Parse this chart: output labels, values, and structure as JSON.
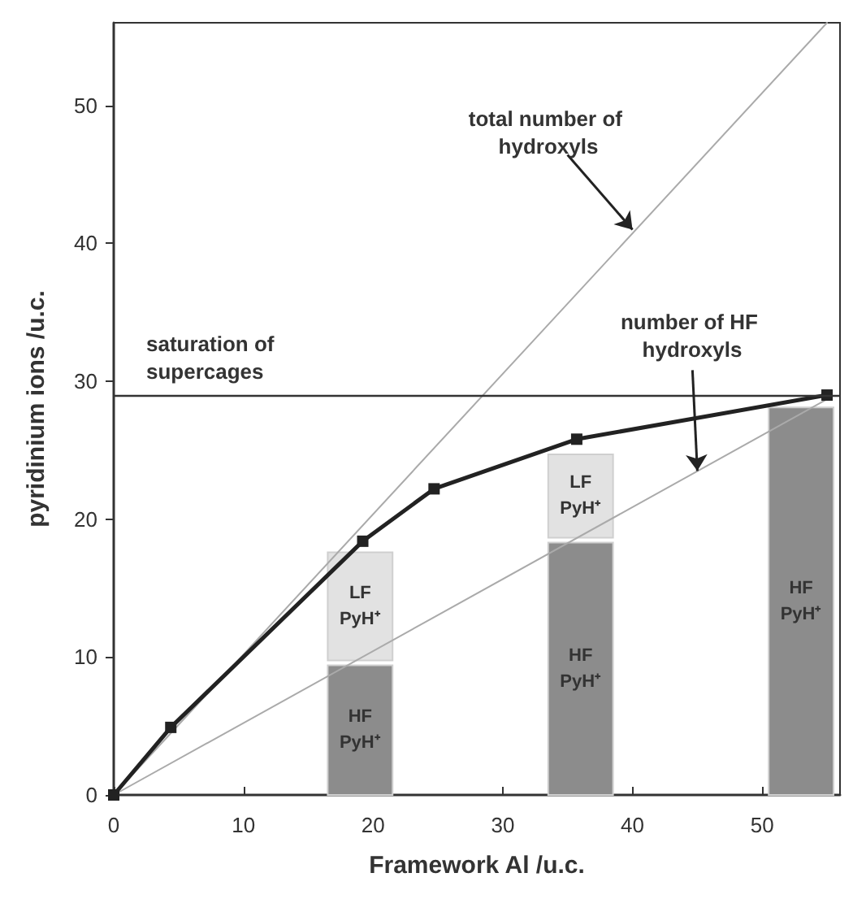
{
  "chart_data": {
    "type": "line",
    "xlabel": "Framework Al /u.c.",
    "ylabel": "pyridinium ions /u.c.",
    "xlim": [
      0,
      56
    ],
    "xticks": [
      0,
      10,
      20,
      30,
      40,
      50
    ],
    "ylim": [
      0,
      56
    ],
    "yticks": [
      0,
      10,
      20,
      30,
      40,
      50
    ],
    "grid": false,
    "stacked": true,
    "series": [
      {
        "type": "bar",
        "color": "#8c8c8c",
        "x": [
          19,
          36,
          53
        ],
        "values": [
          9.4,
          18.3,
          28.1
        ],
        "value_labels": [
          "HF PyH⁺",
          "HF PyH⁺",
          "HF PyH⁺"
        ]
      },
      {
        "type": "bar",
        "color": "#e2e2e2",
        "x": [
          19,
          36
        ],
        "values": [
          8.2,
          6.4
        ],
        "value_labels": [
          "LF PyH⁺",
          "LF PyH⁺"
        ]
      },
      {
        "color": "#aaaaaa",
        "x": [
          0,
          55
        ],
        "values": [
          0,
          56
        ],
        "marker": "none"
      },
      {
        "color": "#aaaaaa",
        "x": [
          0,
          55
        ],
        "values": [
          0,
          28.7
        ],
        "marker": "none"
      },
      {
        "color": "#222222",
        "x": [
          0,
          4.4,
          19.2,
          24.7,
          35.7,
          55
        ],
        "values": [
          0,
          4.9,
          18.4,
          22.2,
          25.8,
          29
        ],
        "marker": "square"
      }
    ],
    "ref_lines": [
      {
        "axis": "y",
        "value": 29,
        "label": "saturation of supercages",
        "color": "#333333"
      }
    ],
    "annotations": [
      {
        "text": "total number of hydroxyls",
        "x": 40,
        "y": 41
      },
      {
        "text": "number of HF hydroxyls",
        "x": 45,
        "y": 23.5
      }
    ]
  }
}
